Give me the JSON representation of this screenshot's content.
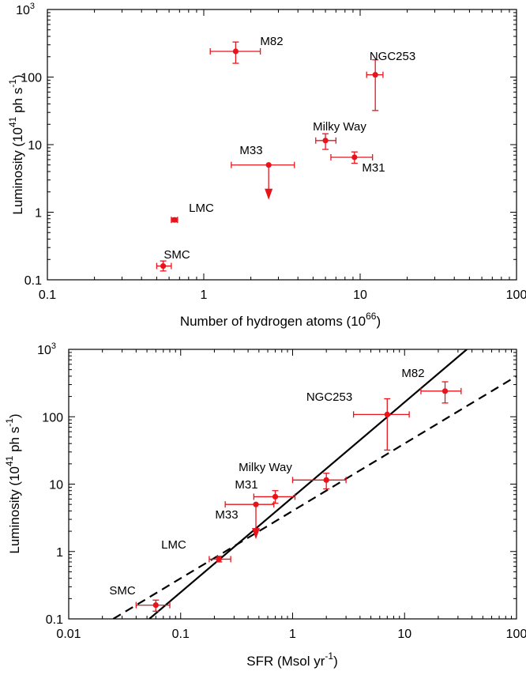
{
  "chart_data": [
    {
      "type": "scatter",
      "xscale": "log",
      "yscale": "log",
      "xlim": [
        0.1,
        100
      ],
      "ylim": [
        0.1,
        1000
      ],
      "xticks": [
        {
          "value": 0.1,
          "label": "0.1"
        },
        {
          "value": 1,
          "label": "1"
        },
        {
          "value": 10,
          "label": "10"
        },
        {
          "value": 100,
          "label": "100"
        }
      ],
      "yticks": [
        {
          "value": 0.1,
          "label": "0.1"
        },
        {
          "value": 1,
          "label": "1"
        },
        {
          "value": 10,
          "label": "10"
        },
        {
          "value": 100,
          "label": "100"
        },
        {
          "value": 1000,
          "label": "10",
          "sup": "3"
        }
      ],
      "xlabel": {
        "text": "Number of hydrogen atoms (10",
        "sup": "66",
        "tail": ")"
      },
      "ylabel": {
        "text": "Luminosity (10",
        "sup": "41",
        "tail": " ph s",
        "sup2": "-1",
        "tail2": ")"
      },
      "grid": false,
      "marker_color": "#e8141c",
      "points": [
        {
          "label": "SMC",
          "x": 0.55,
          "xerr": [
            0.5,
            0.62
          ],
          "y": 0.16,
          "yerr": [
            0.135,
            0.19
          ]
        },
        {
          "label": "LMC",
          "x": 0.65,
          "xerr": [
            0.62,
            0.68
          ],
          "y": 0.77,
          "yerr": [
            0.72,
            0.82
          ]
        },
        {
          "label": "M33",
          "x": 2.6,
          "xerr": [
            1.5,
            3.8
          ],
          "y": 5.0,
          "upper_limit": true
        },
        {
          "label": "Milky Way",
          "x": 6.0,
          "xerr": [
            5.2,
            7.0
          ],
          "y": 11.5,
          "yerr": [
            8.5,
            14.5
          ]
        },
        {
          "label": "M31",
          "x": 9.2,
          "xerr": [
            6.5,
            12.0
          ],
          "y": 6.5,
          "yerr": [
            5.3,
            7.8
          ]
        },
        {
          "label": "M82",
          "x": 1.6,
          "xerr": [
            1.1,
            2.3
          ],
          "y": 240,
          "yerr": [
            160,
            330
          ]
        },
        {
          "label": "NGC253",
          "x": 12.5,
          "xerr": [
            11.0,
            14.0
          ],
          "y": 108,
          "yerr": [
            32,
            180
          ]
        }
      ]
    },
    {
      "type": "scatter",
      "xscale": "log",
      "yscale": "log",
      "xlim": [
        0.01,
        100
      ],
      "ylim": [
        0.1,
        1000
      ],
      "xticks": [
        {
          "value": 0.01,
          "label": "0.01"
        },
        {
          "value": 0.1,
          "label": "0.1"
        },
        {
          "value": 1,
          "label": "1"
        },
        {
          "value": 10,
          "label": "10"
        },
        {
          "value": 100,
          "label": "100"
        }
      ],
      "yticks": [
        {
          "value": 0.1,
          "label": "0.1"
        },
        {
          "value": 1,
          "label": "1"
        },
        {
          "value": 10,
          "label": "10"
        },
        {
          "value": 100,
          "label": "100"
        },
        {
          "value": 1000,
          "label": "10",
          "sup": "3"
        }
      ],
      "xlabel": {
        "text": "SFR (Msol yr",
        "sup": "-1",
        "tail": ")"
      },
      "ylabel": {
        "text": "Luminosity (10",
        "sup": "41",
        "tail": " ph s",
        "sup2": "-1",
        "tail2": ")"
      },
      "grid": false,
      "marker_color": "#e8141c",
      "points": [
        {
          "label": "SMC",
          "x": 0.06,
          "xerr": [
            0.04,
            0.08
          ],
          "y": 0.16,
          "yerr": [
            0.13,
            0.19
          ]
        },
        {
          "label": "LMC",
          "x": 0.22,
          "xerr": [
            0.18,
            0.28
          ],
          "y": 0.77,
          "yerr": [
            0.7,
            0.85
          ]
        },
        {
          "label": "M33",
          "x": 0.47,
          "xerr": [
            0.25,
            0.68
          ],
          "y": 5.0,
          "upper_limit": true
        },
        {
          "label": "M31",
          "x": 0.7,
          "xerr": [
            0.45,
            1.05
          ],
          "y": 6.5,
          "yerr": [
            5.2,
            8.0
          ]
        },
        {
          "label": "Milky Way",
          "x": 2.0,
          "xerr": [
            1.0,
            3.0
          ],
          "y": 11.5,
          "yerr": [
            8.5,
            14.5
          ]
        },
        {
          "label": "NGC253",
          "x": 7.0,
          "xerr": [
            3.5,
            11.0
          ],
          "y": 108,
          "yerr": [
            32,
            185
          ]
        },
        {
          "label": "M82",
          "x": 23.0,
          "xerr": [
            14.0,
            32.0
          ],
          "y": 240,
          "yerr": [
            160,
            330
          ]
        }
      ],
      "lines": [
        {
          "style": "solid",
          "x": [
            0.0525,
            36
          ],
          "y": [
            0.1,
            1000
          ]
        },
        {
          "style": "dashed",
          "x": [
            0.025,
            100
          ],
          "y": [
            0.1,
            400
          ]
        }
      ]
    }
  ]
}
